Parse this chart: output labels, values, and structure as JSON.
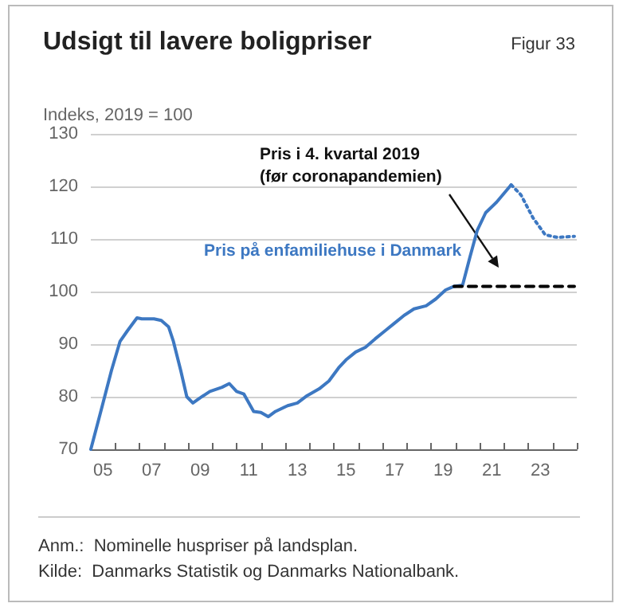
{
  "chart_data": {
    "type": "line",
    "title": "Udsigt til lavere boligpriser",
    "ylabel": "Indeks, 2019 = 100",
    "annotations": [
      "Figur 33",
      "Anm.:  Nominelle huspriser på landsplan.",
      "Kilde:  Danmarks Statistik og Danmarks Nationalbank.",
      "Pris i 4. kvartal 2019\n(før coronapandemien)"
    ],
    "series": [
      {
        "name": "Pris på enfamiliehuse i Danmark",
        "color": "#3d78c2",
        "line_style": "solid",
        "x": [
          4.5,
          4.9,
          5.35,
          5.7,
          6.0,
          6.4,
          6.6,
          7.1,
          7.4,
          7.7,
          7.9,
          8.2,
          8.45,
          8.7,
          9.0,
          9.4,
          9.9,
          10.2,
          10.5,
          10.8,
          11.2,
          11.5,
          11.8,
          12.1,
          12.6,
          13.0,
          13.4,
          13.9,
          14.3,
          14.7,
          15.0,
          15.4,
          15.8,
          16.2,
          16.6,
          17.0,
          17.4,
          17.8,
          18.3,
          18.7,
          19.1,
          19.45,
          19.8,
          20.1,
          20.4,
          20.75,
          21.2,
          21.6,
          21.8
        ],
        "values": [
          70,
          77,
          85,
          90.5,
          92.5,
          95,
          94.8,
          94.8,
          94.5,
          93.3,
          90.5,
          85,
          80,
          78.8,
          79.8,
          81,
          81.8,
          82.5,
          81,
          80.5,
          77.2,
          77,
          76.2,
          77.2,
          78.3,
          78.8,
          80.2,
          81.5,
          83,
          85.5,
          87,
          88.5,
          89.4,
          91,
          92.5,
          94,
          95.5,
          96.7,
          97.3,
          98.6,
          100.3,
          101,
          101.2,
          106.5,
          111.6,
          115,
          117,
          119.2,
          120.3
        ]
      },
      {
        "color": "#3d78c2",
        "line_style": "dotted",
        "x": [
          21.8,
          22.2,
          22.7,
          23.2,
          23.7,
          24.4
        ],
        "values": [
          120.3,
          118.4,
          114,
          110.8,
          110.3,
          110.5
        ]
      },
      {
        "color": "#000000",
        "line_style": "dashed",
        "x": [
          19.45,
          24.4
        ],
        "values": [
          101,
          101
        ]
      }
    ],
    "xlim": [
      4.5,
      24.5
    ],
    "xticks": [
      {
        "value": 4.5,
        "label": null
      },
      {
        "value": 5.5,
        "label": null
      },
      {
        "value": 6.5,
        "label": null
      },
      {
        "value": 7.5,
        "label": null
      },
      {
        "value": 8.5,
        "label": null
      },
      {
        "value": 9.5,
        "label": null
      },
      {
        "value": 10.5,
        "label": null
      },
      {
        "value": 11.5,
        "label": null
      },
      {
        "value": 12.5,
        "label": null
      },
      {
        "value": 13.5,
        "label": null
      },
      {
        "value": 14.5,
        "label": null
      },
      {
        "value": 15.5,
        "label": null
      },
      {
        "value": 16.5,
        "label": null
      },
      {
        "value": 17.5,
        "label": null
      },
      {
        "value": 18.5,
        "label": null
      },
      {
        "value": 19.5,
        "label": null
      },
      {
        "value": 20.5,
        "label": null
      },
      {
        "value": 21.5,
        "label": null
      },
      {
        "value": 22.5,
        "label": null
      },
      {
        "value": 23.5,
        "label": null
      },
      {
        "value": 24.5,
        "label": null
      },
      {
        "value": 5,
        "label": "05"
      },
      {
        "value": 7,
        "label": "07"
      },
      {
        "value": 9,
        "label": "09"
      },
      {
        "value": 11,
        "label": "11"
      },
      {
        "value": 13,
        "label": "13"
      },
      {
        "value": 15,
        "label": "15"
      },
      {
        "value": 17,
        "label": "17"
      },
      {
        "value": 19,
        "label": "19"
      },
      {
        "value": 21,
        "label": "21"
      },
      {
        "value": 23,
        "label": "23"
      }
    ],
    "ylim": [
      70,
      130
    ],
    "yticks": [
      70,
      80,
      90,
      100,
      110,
      120,
      130
    ],
    "grid": "y",
    "legend": false,
    "marker": "none"
  }
}
